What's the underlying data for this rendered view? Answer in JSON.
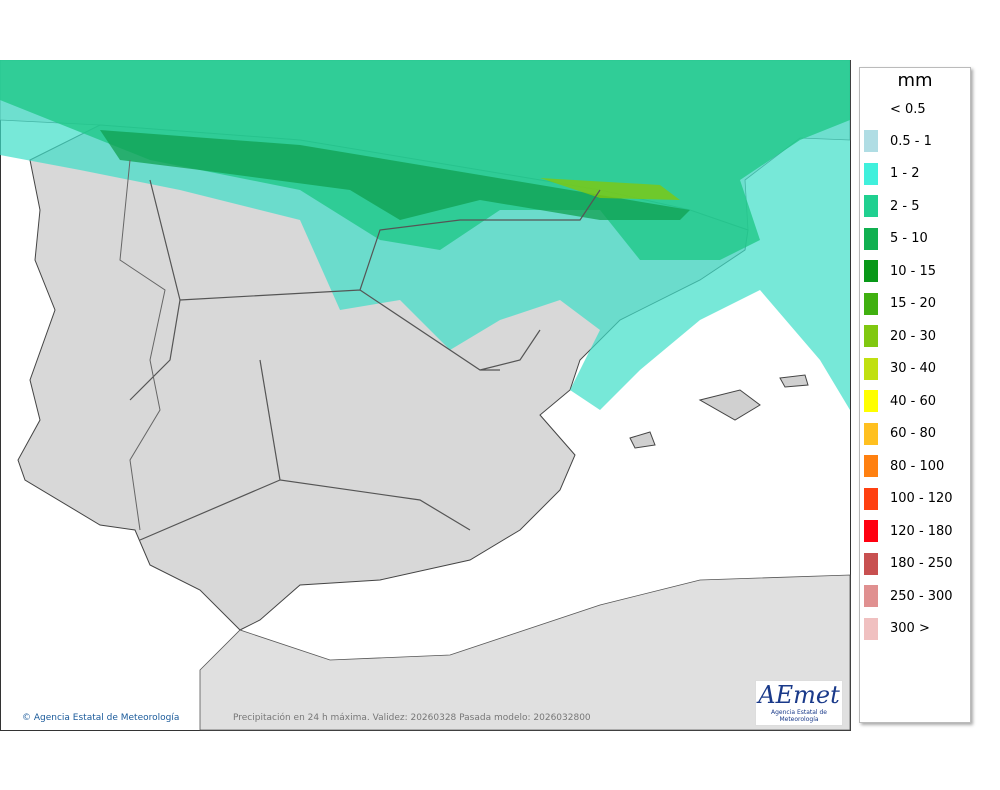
{
  "legend": {
    "title": "mm",
    "below": "< 0.5",
    "entries": [
      {
        "label": "0.5 - 1",
        "color": "#b0dde4"
      },
      {
        "label": "1 - 2",
        "color": "#40f0dc"
      },
      {
        "label": "2 - 5",
        "color": "#20d090"
      },
      {
        "label": "5 - 10",
        "color": "#10b050"
      },
      {
        "label": "10 - 15",
        "color": "#089818"
      },
      {
        "label": "15 - 20",
        "color": "#40b010"
      },
      {
        "label": "20 - 30",
        "color": "#80c810"
      },
      {
        "label": "30 - 40",
        "color": "#c0e010"
      },
      {
        "label": "40 - 60",
        "color": "#ffff00"
      },
      {
        "label": "60 - 80",
        "color": "#ffc020"
      },
      {
        "label": "80 - 100",
        "color": "#ff8010"
      },
      {
        "label": "100 - 120",
        "color": "#ff4010"
      },
      {
        "label": "120 - 180",
        "color": "#ff0010"
      },
      {
        "label": "180 - 250",
        "color": "#c85050"
      },
      {
        "label": "250 - 300",
        "color": "#e09090"
      },
      {
        "label": "300 >",
        "color": "#f0c0c0"
      }
    ]
  },
  "footer": {
    "agency": "Agencia Estatal de Meteorología",
    "caption": "Precipitación en 24 h máxima. Validez: 20260328 Pasada modelo: 2026032800"
  },
  "logo": {
    "name": "AEmet",
    "subtitle": "Agencia Estatal de Meteorología"
  }
}
